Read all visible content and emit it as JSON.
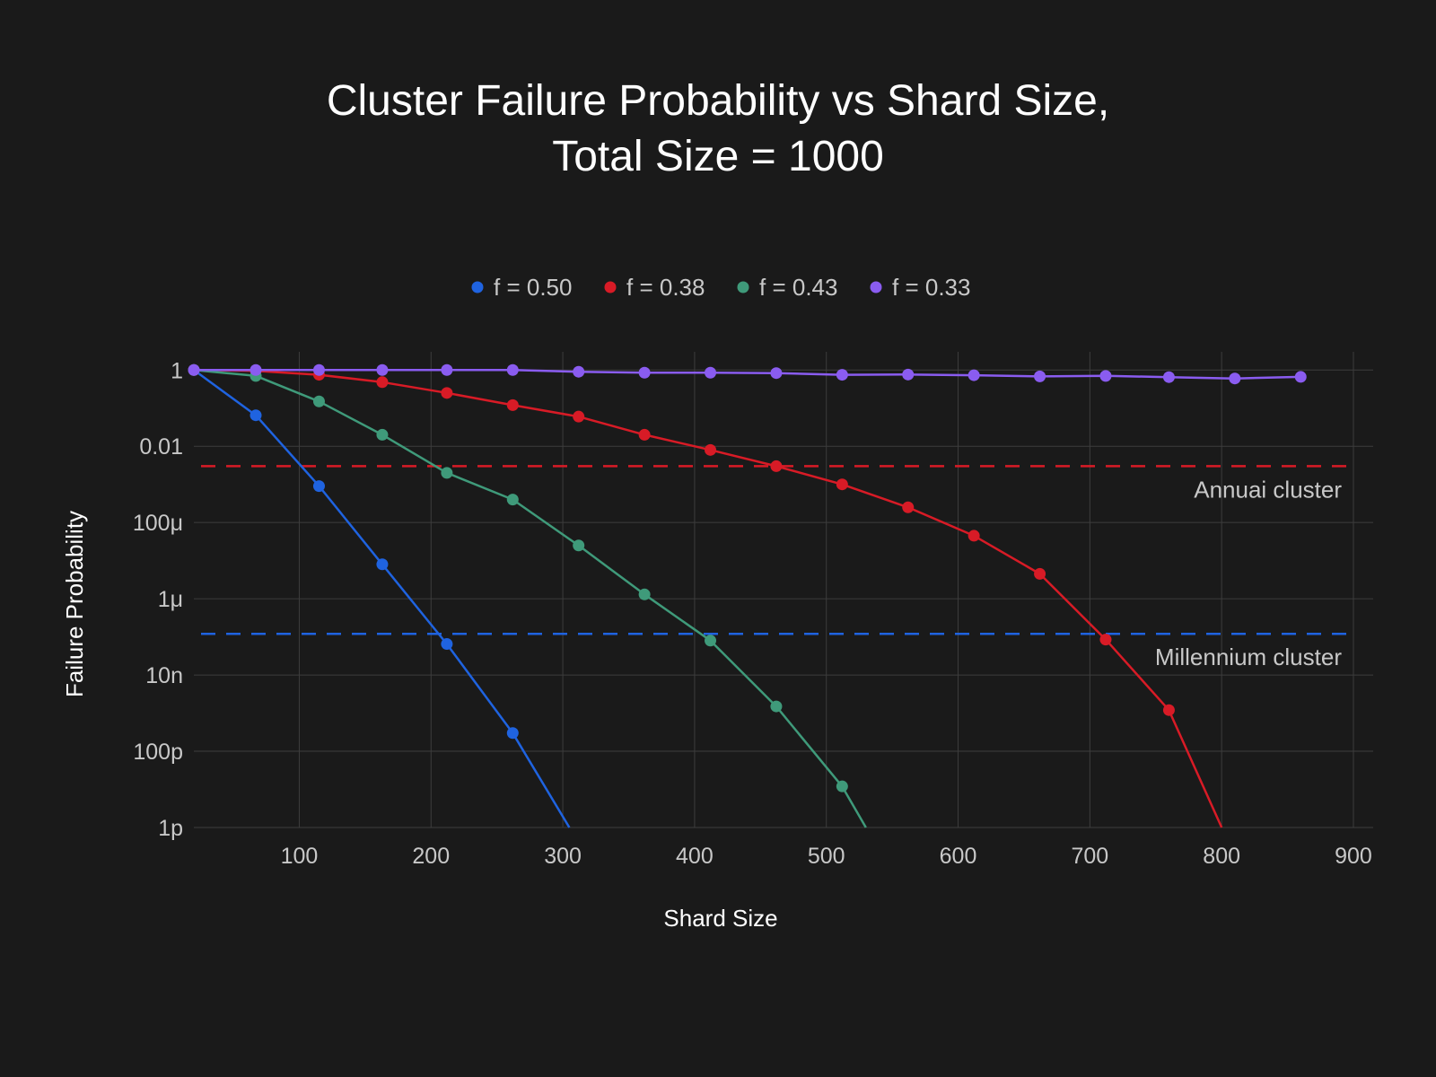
{
  "colors": {
    "background": "#1a1a1a",
    "grid": "#3d3d3d",
    "text": "#ffffff",
    "tick_text": "#c8c8c8",
    "f050": "#1f63e0",
    "f038": "#d81b26",
    "f043": "#3f9a7a",
    "f033": "#8a5cf0"
  },
  "chart_data": {
    "type": "line",
    "title_line1": "Cluster Failure Probability vs Shard Size,",
    "title_line2": "Total Size = 1000",
    "xlabel": "Shard Size",
    "ylabel": "Failure Probability",
    "y_scale": "log",
    "xlim": [
      20,
      915
    ],
    "ylim": [
      1e-12,
      3
    ],
    "grid": true,
    "legend_position": "top-center",
    "x_ticks": [
      100,
      200,
      300,
      400,
      500,
      600,
      700,
      800,
      900
    ],
    "x_tick_labels": [
      "100",
      "200",
      "300",
      "400",
      "500",
      "600",
      "700",
      "800",
      "900"
    ],
    "y_ticks": [
      1,
      0.01,
      0.0001,
      1e-06,
      1e-08,
      1e-10,
      1e-12
    ],
    "y_tick_labels": [
      "1",
      "0.01",
      "100μ",
      "1μ",
      "10n",
      "100p",
      "1p"
    ],
    "series": [
      {
        "name": "f = 0.50",
        "color_key": "f050",
        "x": [
          20,
          67,
          115,
          163,
          212,
          262,
          305
        ],
        "y": [
          1.0,
          0.065,
          0.0009,
          8e-06,
          6.5e-08,
          3e-10,
          1e-12
        ],
        "markers": [
          true,
          true,
          true,
          true,
          true,
          true,
          false
        ]
      },
      {
        "name": "f = 0.38",
        "color_key": "f038",
        "x": [
          20,
          67,
          115,
          163,
          212,
          262,
          312,
          362,
          412,
          462,
          512,
          562,
          612,
          662,
          712,
          760,
          800
        ],
        "y": [
          1.0,
          0.95,
          0.75,
          0.48,
          0.25,
          0.12,
          0.06,
          0.02,
          0.008,
          0.003,
          0.001,
          0.00025,
          4.5e-05,
          4.5e-06,
          8.5e-08,
          1.2e-09,
          1e-12
        ],
        "markers": [
          true,
          true,
          true,
          true,
          true,
          true,
          true,
          true,
          true,
          true,
          true,
          true,
          true,
          true,
          true,
          true,
          false
        ]
      },
      {
        "name": "f = 0.43",
        "color_key": "f043",
        "x": [
          20,
          67,
          115,
          163,
          212,
          262,
          312,
          362,
          412,
          462,
          512,
          530
        ],
        "y": [
          1.0,
          0.7,
          0.15,
          0.02,
          0.002,
          0.0004,
          2.5e-05,
          1.3e-06,
          8e-08,
          1.5e-09,
          1.2e-11,
          1e-12
        ],
        "markers": [
          true,
          true,
          true,
          true,
          true,
          true,
          true,
          true,
          true,
          true,
          true,
          false
        ]
      },
      {
        "name": "f = 0.33",
        "color_key": "f033",
        "x": [
          20,
          67,
          115,
          163,
          212,
          262,
          312,
          362,
          412,
          462,
          512,
          562,
          612,
          662,
          712,
          760,
          810,
          860
        ],
        "y": [
          1.0,
          1.0,
          1.0,
          1.0,
          1.0,
          1.0,
          0.9,
          0.85,
          0.85,
          0.83,
          0.75,
          0.76,
          0.73,
          0.68,
          0.7,
          0.65,
          0.6,
          0.66
        ],
        "markers": [
          true,
          true,
          true,
          true,
          true,
          true,
          true,
          true,
          true,
          true,
          true,
          true,
          true,
          true,
          true,
          true,
          true,
          true
        ]
      }
    ],
    "reference_lines": [
      {
        "y": 0.003,
        "color_key": "f038",
        "label": "Annuai cluster"
      },
      {
        "y": 1.2e-07,
        "color_key": "f050",
        "label": "Millennium cluster"
      }
    ]
  }
}
